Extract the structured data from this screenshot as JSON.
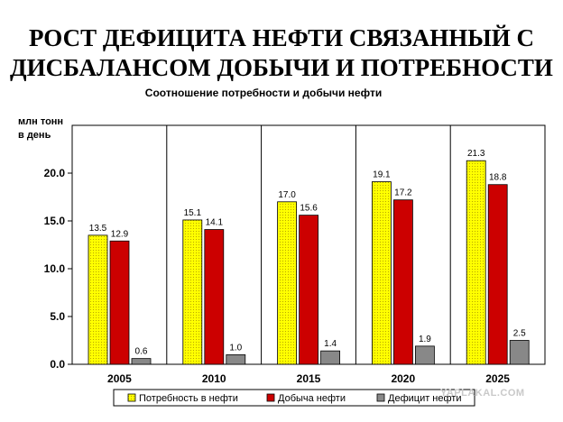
{
  "page": {
    "title_line1": "РОСТ ДЕФИЦИТА НЕФТИ СВЯЗАННЫЙ С",
    "title_line2": "ДИСБАЛАНСОМ ДОБЫЧИ И ПОТРЕБНОСТИ",
    "watermark": "YAPLAKAL.COM"
  },
  "chart_data": {
    "type": "bar",
    "title": "Соотношение потребности и добычи нефти",
    "ylabel_line1": "млн тонн",
    "ylabel_line2": "в день",
    "xlabel": "",
    "categories": [
      "2005",
      "2010",
      "2015",
      "2020",
      "2025"
    ],
    "series": [
      {
        "name": "Потребность в нефти",
        "values": [
          13.5,
          15.1,
          17.0,
          19.1,
          21.3
        ],
        "labels": [
          "13.5",
          "15.1",
          "17.0",
          "19.1",
          "21.3"
        ],
        "color": "#ffff00"
      },
      {
        "name": "Добыча нефти",
        "values": [
          12.9,
          14.1,
          15.6,
          17.2,
          18.8
        ],
        "labels": [
          "12.9",
          "14.1",
          "15.6",
          "17.2",
          "18.8"
        ],
        "color": "#cc0000"
      },
      {
        "name": "Дефицит нефти",
        "values": [
          0.6,
          1.0,
          1.4,
          1.9,
          2.5
        ],
        "labels": [
          "0.6",
          "1.0",
          "1.4",
          "1.9",
          "2.5"
        ],
        "color": "#888888"
      }
    ],
    "ylim": [
      0,
      25
    ],
    "yticks": [
      0,
      5,
      10,
      15,
      20
    ],
    "ytick_labels": [
      "0.0",
      "5.0",
      "10.0",
      "15.0",
      "20.0"
    ],
    "grid": "vertical category separators",
    "legend_position": "bottom"
  }
}
